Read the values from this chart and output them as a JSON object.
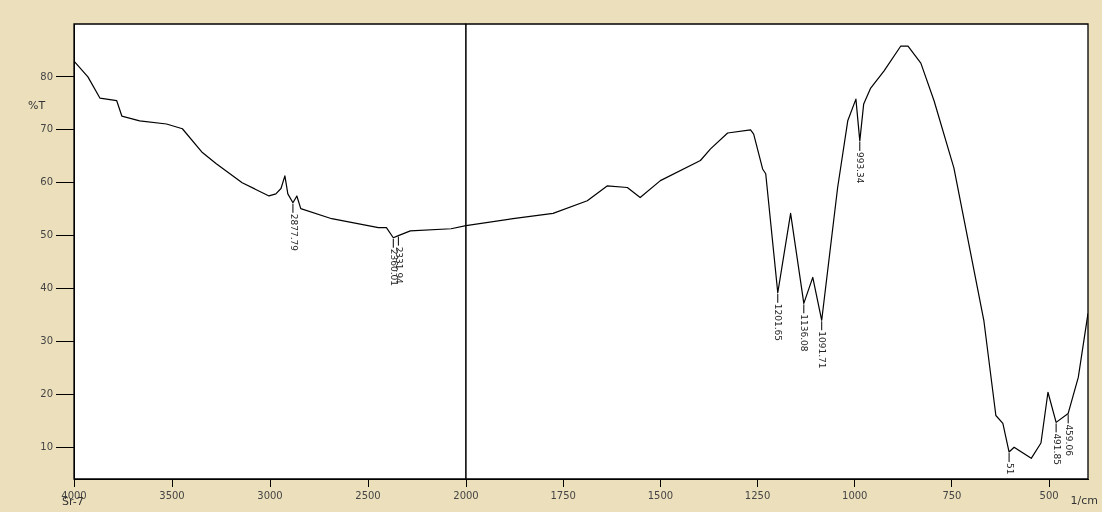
{
  "chart_data": [
    {
      "type": "line",
      "ylabel": "%T",
      "x": [
        4000,
        3929,
        3868,
        3782,
        3756,
        3665,
        3528,
        3447,
        3345,
        3274,
        3142,
        3005,
        2970,
        2944,
        2924,
        2909,
        2883,
        2863,
        2843,
        2685,
        2447,
        2406,
        2371,
        2345,
        2284,
        2076,
        2000
      ],
      "series": [
        {
          "color": "#000000",
          "values": [
            83.0,
            80.0,
            76.0,
            75.5,
            72.6,
            71.7,
            71.1,
            70.2,
            65.7,
            63.6,
            60.0,
            57.5,
            57.9,
            58.9,
            61.3,
            57.9,
            56.2,
            57.5,
            55.1,
            53.2,
            51.5,
            51.5,
            49.6,
            50.0,
            50.9,
            51.3,
            51.9
          ]
        }
      ],
      "xlim": [
        4000,
        2000
      ],
      "xticks": [
        4000,
        3500,
        3000,
        2500
      ],
      "ylim": [
        4,
        90
      ],
      "yticks": [
        10,
        20,
        30,
        40,
        50,
        60,
        70,
        80
      ],
      "annotations": [
        "Sr-7",
        {
          "text": "2877.79",
          "x": 2883,
          "y": 56.2
        },
        {
          "text": "2360.01",
          "x": 2371,
          "y": 49.6
        },
        {
          "text": "2331.94",
          "x": 2345,
          "y": 50.0
        }
      ],
      "grid": false,
      "legend": false,
      "marker": "none",
      "line_style": "solid"
    },
    {
      "type": "line",
      "xlabel": "1/cm",
      "x": [
        2000,
        1879,
        1776,
        1688,
        1637,
        1585,
        1552,
        1500,
        1397,
        1371,
        1327,
        1268,
        1260,
        1237,
        1229,
        1198,
        1165,
        1131,
        1108,
        1085,
        1044,
        1018,
        997,
        987,
        977,
        959,
        925,
        882,
        863,
        830,
        796,
        745,
        668,
        637,
        619,
        603,
        590,
        546,
        521,
        503,
        482,
        451,
        425,
        400
      ],
      "series": [
        {
          "color": "#000000",
          "values": [
            51.9,
            53.2,
            54.2,
            56.6,
            59.4,
            59.1,
            57.2,
            60.4,
            64.2,
            66.4,
            69.4,
            70.0,
            69.2,
            62.6,
            61.7,
            39.2,
            54.2,
            37.2,
            42.1,
            34.0,
            59.1,
            71.7,
            75.8,
            67.9,
            74.9,
            77.9,
            81.1,
            85.8,
            85.8,
            82.6,
            75.5,
            62.8,
            34.0,
            16.0,
            14.5,
            9.1,
            10.0,
            7.9,
            10.8,
            20.4,
            14.7,
            16.4,
            23.2,
            35.3
          ]
        }
      ],
      "xlim": [
        2000,
        400
      ],
      "xticks": [
        2000,
        1750,
        1500,
        1250,
        1000,
        750,
        500
      ],
      "ylim": [
        4,
        90
      ],
      "yticks": [
        10,
        20,
        30,
        40,
        50,
        60,
        70,
        80
      ],
      "tick_labels": "x",
      "annotations": [
        {
          "text": "1201.65",
          "x": 1198,
          "y": 39.2
        },
        {
          "text": "1136.08",
          "x": 1131,
          "y": 37.2
        },
        {
          "text": "1091.71",
          "x": 1085,
          "y": 34.0
        },
        {
          "text": "993.34",
          "x": 987,
          "y": 67.9
        },
        {
          "text": "51",
          "x": 603,
          "y": 9.1
        },
        {
          "text": "491.85",
          "x": 482,
          "y": 14.7
        },
        {
          "text": "459.06",
          "x": 451,
          "y": 16.4
        }
      ],
      "grid": false,
      "legend": false,
      "marker": "none",
      "line_style": "solid"
    }
  ]
}
